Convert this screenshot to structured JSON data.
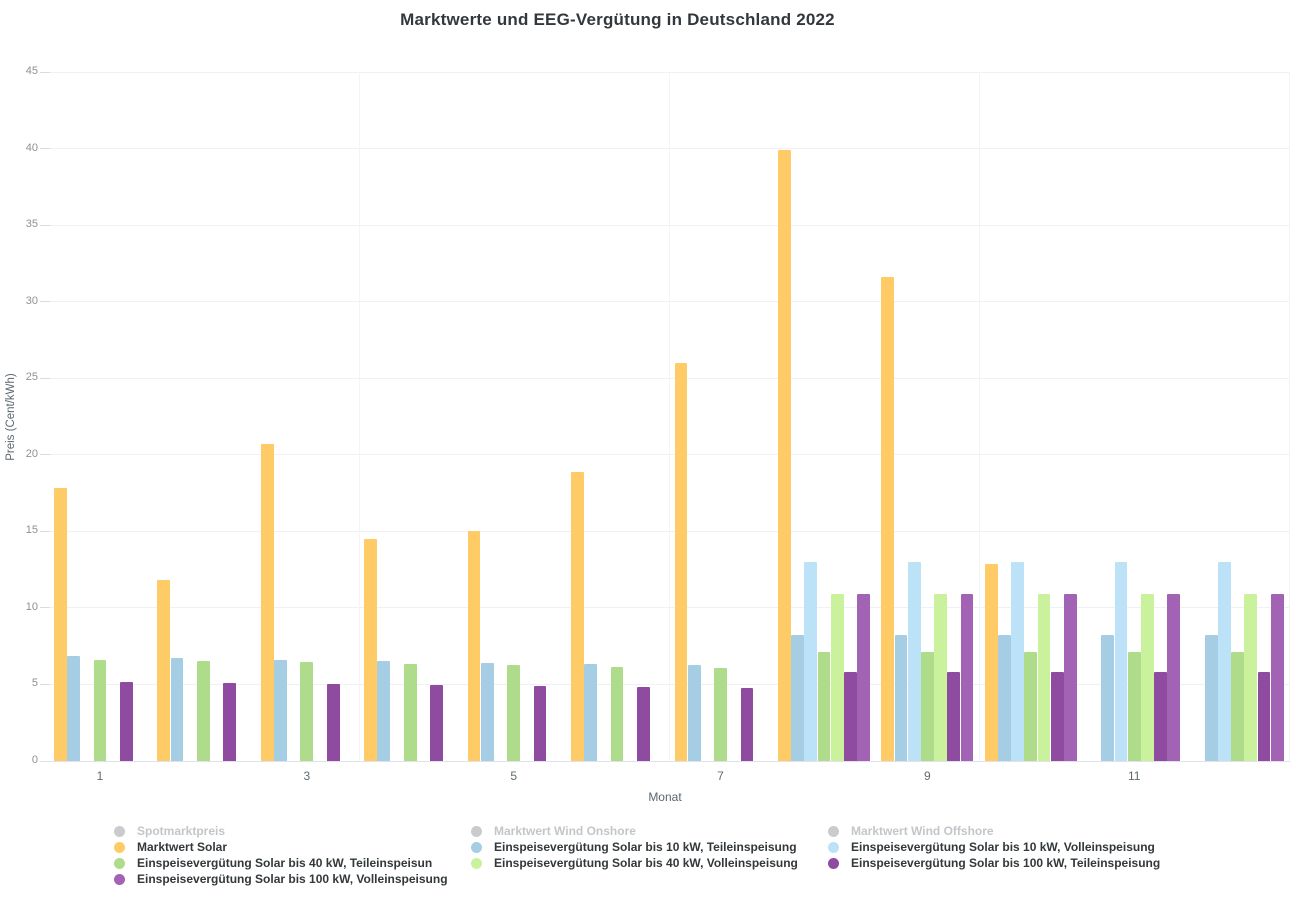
{
  "chart_data": {
    "type": "bar",
    "title": "Marktwerte und EEG-Vergütung in Deutschland 2022",
    "xlabel": "Monat",
    "ylabel": "Preis (Cent/kWh)",
    "ylim": [
      0,
      45
    ],
    "yticks": [
      0,
      5,
      10,
      15,
      20,
      25,
      30,
      35,
      40,
      45
    ],
    "categories": [
      1,
      2,
      3,
      4,
      5,
      6,
      7,
      8,
      9,
      10,
      11,
      12
    ],
    "xtick_labels_shown": [
      "1",
      "3",
      "5",
      "7",
      "9",
      "11"
    ],
    "grid": "horizontal-light",
    "legend_position": "bottom",
    "disabled_legend_color": "#c9cbce",
    "series": [
      {
        "name": "Spotmarktpreis",
        "color": "#c9cbce",
        "state": "disabled",
        "values": [
          null,
          null,
          null,
          null,
          null,
          null,
          null,
          null,
          null,
          null,
          null,
          null
        ]
      },
      {
        "name": "Marktwert Wind Onshore",
        "color": "#c9cbce",
        "state": "disabled",
        "values": [
          null,
          null,
          null,
          null,
          null,
          null,
          null,
          null,
          null,
          null,
          null,
          null
        ]
      },
      {
        "name": "Marktwert Wind Offshore",
        "color": "#c9cbce",
        "state": "disabled",
        "values": [
          null,
          null,
          null,
          null,
          null,
          null,
          null,
          null,
          null,
          null,
          null,
          null
        ]
      },
      {
        "name": "Marktwert Solar",
        "color": "#fecb66",
        "state": "active",
        "values": [
          17.8,
          11.8,
          20.7,
          14.5,
          15.0,
          18.9,
          26.0,
          39.9,
          31.6,
          12.9,
          null,
          null
        ]
      },
      {
        "name": "Einspeisevergütung Solar bis 10 kW, Teileinspeisung",
        "color": "#a5cee4",
        "state": "active",
        "values": [
          6.83,
          6.73,
          6.63,
          6.53,
          6.43,
          6.34,
          6.24,
          8.2,
          8.2,
          8.2,
          8.2,
          8.2
        ]
      },
      {
        "name": "Einspeisevergütung Solar bis 10 kW, Volleinspeisung",
        "color": "#bce2f7",
        "state": "active",
        "values": [
          null,
          null,
          null,
          null,
          null,
          null,
          null,
          13.0,
          13.0,
          13.0,
          13.0,
          13.0
        ]
      },
      {
        "name": "Einspeisevergütung Solar bis 40 kW, Teileinspeisun",
        "color": "#aedc8b",
        "state": "active",
        "values": [
          6.63,
          6.53,
          6.44,
          6.34,
          6.25,
          6.15,
          6.06,
          7.1,
          7.1,
          7.1,
          7.1,
          7.1
        ]
      },
      {
        "name": "Einspeisevergütung Solar bis 40 kW, Volleinspeisung",
        "color": "#caf29c",
        "state": "active",
        "values": [
          null,
          null,
          null,
          null,
          null,
          null,
          null,
          10.9,
          10.9,
          10.9,
          10.9,
          10.9
        ]
      },
      {
        "name": "Einspeisevergütung Solar bis 100 kW, Teileinspeisung",
        "color": "#8e4ba0",
        "state": "active",
        "values": [
          5.19,
          5.11,
          5.03,
          4.96,
          4.88,
          4.81,
          4.74,
          5.8,
          5.8,
          5.8,
          5.8,
          5.8
        ]
      },
      {
        "name": "Einspeisevergütung Solar bis 100 kW, Volleinspeisung",
        "color": "#a263b5",
        "state": "active",
        "values": [
          null,
          null,
          null,
          null,
          null,
          null,
          null,
          10.9,
          10.9,
          10.9,
          10.9,
          10.9
        ]
      }
    ]
  }
}
